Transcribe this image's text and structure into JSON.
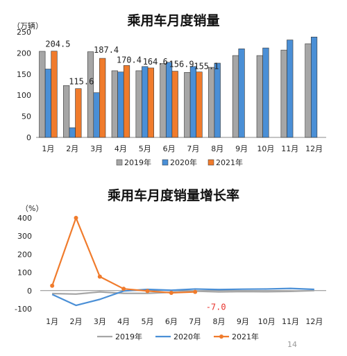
{
  "chart_data": [
    {
      "type": "bar",
      "title": "乘用车月度销量",
      "unit": "（万辆）",
      "categories": [
        "1月",
        "2月",
        "3月",
        "4月",
        "5月",
        "6月",
        "7月",
        "8月",
        "9月",
        "10月",
        "11月",
        "12月"
      ],
      "ylim": [
        0,
        250
      ],
      "yticks": [
        0,
        50,
        100,
        150,
        200,
        250
      ],
      "grid": false,
      "legend_position": "bottom",
      "series": [
        {
          "name": "2019年",
          "color": "#a6a6a6",
          "values": [
            204,
            123,
            203,
            158,
            158,
            175,
            154,
            166,
            194,
            194,
            207,
            222
          ]
        },
        {
          "name": "2020年",
          "color": "#4a8fd6",
          "values": [
            162,
            23,
            106,
            155,
            168,
            178,
            168,
            176,
            210,
            212,
            231,
            238
          ]
        },
        {
          "name": "2021年",
          "color": "#f07b2c",
          "values": [
            204.5,
            115.6,
            187.4,
            170.4,
            164.6,
            156.9,
            155.1,
            null,
            null,
            null,
            null,
            null
          ]
        }
      ],
      "data_labels": [
        "204.5",
        "115.6",
        "187.4",
        "170.4",
        "164.6",
        "156.9",
        "155.1"
      ]
    },
    {
      "type": "line",
      "title": "乘用车月度销量增长率",
      "unit": "（%）",
      "categories": [
        "1月",
        "2月",
        "3月",
        "4月",
        "5月",
        "6月",
        "7月",
        "8月",
        "9月",
        "10月",
        "11月",
        "12月"
      ],
      "ylim": [
        -100,
        400
      ],
      "yticks": [
        -100,
        0,
        100,
        200,
        300,
        400
      ],
      "grid": false,
      "legend_position": "bottom",
      "series": [
        {
          "name": "2019年",
          "color": "#a6a6a6",
          "values": [
            -16,
            -19,
            -7,
            -15,
            -15,
            -9,
            -3,
            -7,
            -5,
            -6,
            -4,
            0
          ]
        },
        {
          "name": "2020年",
          "color": "#4a8fd6",
          "values": [
            -21,
            -81,
            -48,
            -2,
            7,
            2,
            9,
            6,
            8,
            9,
            12,
            7
          ]
        },
        {
          "name": "2021年",
          "color": "#f07b2c",
          "values": [
            27,
            400,
            77,
            10,
            -2,
            -12,
            -7,
            null,
            null,
            null,
            null,
            null
          ]
        }
      ],
      "data_labels": [
        "-7.0"
      ]
    }
  ],
  "page_number": "14"
}
